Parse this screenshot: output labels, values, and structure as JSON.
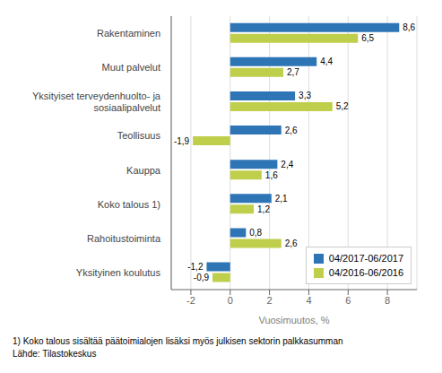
{
  "chart_data": {
    "type": "bar",
    "orientation": "horizontal",
    "categories": [
      "Rakentaminen",
      "Muut palvelut",
      "Yksityiset terveydenhuolto- ja\nsosiaalipalvelut",
      "Teollisuus",
      "Kauppa",
      "Koko talous 1)",
      "Rahoitustoiminta",
      "Yksityinen koulutus"
    ],
    "series": [
      {
        "name": "04/2017-06/2017",
        "color": "#2E75B6",
        "values": [
          8.6,
          4.4,
          3.3,
          2.6,
          2.4,
          2.1,
          0.8,
          -1.2
        ],
        "value_labels": [
          "8,6",
          "4,4",
          "3,3",
          "2,6",
          "2,4",
          "2,1",
          "0,8",
          "-1,2"
        ]
      },
      {
        "name": "04/2016-06/2016",
        "color": "#BFCE4B",
        "values": [
          6.5,
          2.7,
          5.2,
          -1.9,
          1.6,
          1.2,
          2.6,
          -0.9
        ],
        "value_labels": [
          "6,5",
          "2,7",
          "5,2",
          "-1,9",
          "1,6",
          "1,2",
          "2,6",
          "-0,9"
        ]
      }
    ],
    "xlabel": "Vuosimuutos, %",
    "xlim": [
      -3,
      9.5
    ],
    "xticks": [
      -2,
      0,
      2,
      4,
      6,
      8
    ],
    "grid": true,
    "legend": "lower right",
    "data_labels": true,
    "annotations": [
      "1) Koko talous sisältää päätoimialojen lisäksi myös julkisen sektorin palkkasumman",
      "Lähde: Tilastokeskus"
    ]
  }
}
